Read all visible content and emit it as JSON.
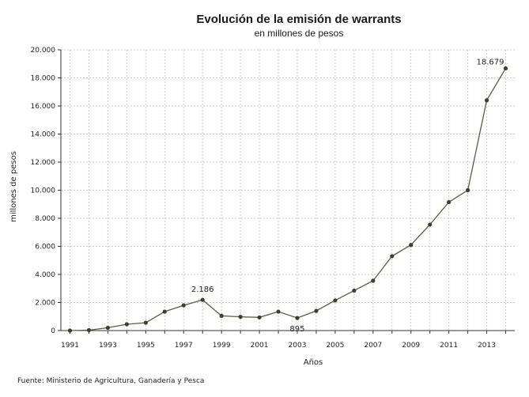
{
  "chart_data": {
    "type": "line",
    "title": "Evolución de la emisión de warrants",
    "subtitle": "en millones de pesos",
    "xlabel": "Años",
    "ylabel": "millones de pesos",
    "source": "Fuente: Ministerio de Agricultura, Ganadería y Pesca",
    "xlim": [
      1991,
      2014
    ],
    "ylim": [
      0,
      20000
    ],
    "x_ticks": [
      "1991",
      "1993",
      "1995",
      "1997",
      "1999",
      "2001",
      "2003",
      "2005",
      "2007",
      "2009",
      "2011",
      "2013"
    ],
    "y_ticks": [
      "0",
      "2.000",
      "4.000",
      "6.000",
      "8.000",
      "10.000",
      "12.000",
      "14.000",
      "16.000",
      "18.000",
      "20.000"
    ],
    "grid": true,
    "series": [
      {
        "x": [
          1991,
          1992,
          1993,
          1994,
          1995,
          1996,
          1997,
          1998,
          1999,
          2000,
          2001,
          2002,
          2003,
          2004,
          2005,
          2006,
          2007,
          2008,
          2009,
          2010,
          2011,
          2012,
          2013,
          2014
        ],
        "values": [
          0,
          30,
          200,
          450,
          560,
          1350,
          1800,
          2186,
          1050,
          980,
          940,
          1350,
          895,
          1400,
          2150,
          2850,
          3550,
          5300,
          6100,
          7550,
          9150,
          10000,
          16400,
          18679
        ]
      }
    ],
    "annotations": [
      {
        "x": 1998,
        "y": 2186,
        "text": "2.186",
        "position": "above"
      },
      {
        "x": 2003,
        "y": 895,
        "text": "895",
        "position": "below"
      },
      {
        "x": 2014,
        "y": 18679,
        "text": "18.679",
        "position": "above-left"
      }
    ],
    "colors": {
      "line": "#5a5a48",
      "marker": "#3e3e2c",
      "grid": "#c8c8c8",
      "axis": "#333333"
    }
  }
}
